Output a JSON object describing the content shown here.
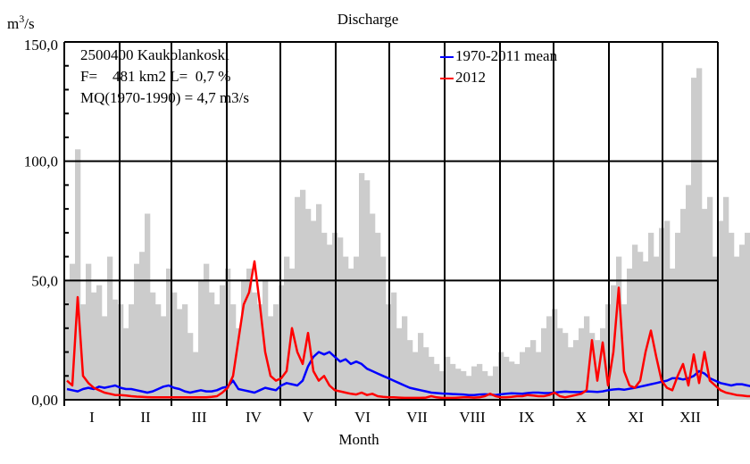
{
  "chart_data": {
    "type": "line",
    "title": "Discharge",
    "ylabel_base": "m",
    "ylabel_sup": "3",
    "ylabel_rest": "/s",
    "xlabel": "Month",
    "ylim": [
      0,
      150
    ],
    "xlim_days": [
      1,
      366
    ],
    "y_ticks": [
      {
        "value": 0,
        "label": "0,00"
      },
      {
        "value": 50,
        "label": "50,0"
      },
      {
        "value": 100,
        "label": "100,0"
      },
      {
        "value": 150,
        "label": "150,0"
      }
    ],
    "y_minor_step": 10,
    "months": [
      "I",
      "II",
      "III",
      "IV",
      "V",
      "VI",
      "VII",
      "VIII",
      "IX",
      "X",
      "XI",
      "XII"
    ],
    "month_start_days": [
      1,
      32,
      61,
      92,
      122,
      153,
      183,
      214,
      245,
      275,
      306,
      336,
      367
    ],
    "info": {
      "station": "2500400 Kaukolankoski",
      "area": "F=    481 km2 L=  0,7 %",
      "mq": "MQ(1970-1990) = 4,7 m3/s"
    },
    "legend": {
      "placement": "top-right",
      "entries": [
        {
          "name": "1970-2011 mean",
          "color": "#0000ff"
        },
        {
          "name": "2012",
          "color": "#ff0000"
        }
      ]
    },
    "envelope_color": "#cccccc",
    "sample_step_days": 3,
    "series": [
      {
        "name": "1970-2011 mean",
        "color": "#0000ff",
        "values": [
          4.5,
          4,
          3.5,
          4.5,
          5,
          4.5,
          5.5,
          5,
          5.5,
          6,
          5,
          4.5,
          4.5,
          4,
          3.5,
          3,
          3.5,
          4.5,
          5.5,
          6,
          5,
          4.5,
          3.5,
          3,
          3.5,
          4,
          3.5,
          3.5,
          4,
          5,
          5.5,
          8,
          4.5,
          4,
          3.5,
          3,
          4,
          5,
          4.5,
          4,
          6,
          7,
          6.5,
          6,
          8,
          14,
          18,
          20,
          19,
          20,
          18,
          16,
          17,
          15,
          16,
          15,
          13,
          12,
          11,
          10,
          9,
          8,
          7,
          6,
          5,
          4.5,
          4,
          3.5,
          3,
          2.8,
          2.6,
          2.5,
          2.4,
          2.3,
          2.2,
          2,
          2,
          2.2,
          2.3,
          2.2,
          2,
          2.3,
          2.5,
          2.7,
          2.6,
          2.5,
          2.8,
          3,
          3,
          2.8,
          2.8,
          3,
          3.2,
          3.4,
          3.3,
          3.2,
          3.3,
          3.5,
          3.4,
          3.3,
          3.5,
          4,
          4.3,
          4.5,
          4.2,
          4.6,
          5,
          5.5,
          6,
          6.5,
          7,
          7.5,
          8,
          9,
          9,
          8.5,
          9,
          10,
          12,
          11,
          9,
          8,
          7,
          6.5,
          6,
          6.5,
          6.5,
          6,
          5.5,
          5.5,
          5.8,
          6
        ]
      },
      {
        "name": "2012",
        "color": "#ff0000",
        "values": [
          8,
          6,
          43,
          10,
          7,
          5,
          4,
          3,
          2.5,
          2,
          2,
          1.8,
          1.5,
          1.3,
          1.2,
          1.1,
          1,
          1,
          1,
          1,
          1,
          1,
          1,
          1,
          1,
          1,
          1,
          1.2,
          1.5,
          3,
          5,
          10,
          25,
          40,
          45,
          58,
          40,
          20,
          10,
          8,
          9,
          12,
          30,
          20,
          15,
          28,
          12,
          8,
          10,
          6,
          4,
          3.5,
          3,
          2.5,
          2.2,
          3,
          2,
          2.5,
          1.5,
          1.2,
          1,
          1,
          0.9,
          0.8,
          0.8,
          0.8,
          0.8,
          0.9,
          1.5,
          1,
          0.8,
          0.8,
          0.8,
          0.9,
          1,
          1,
          0.9,
          1,
          1.5,
          2.5,
          1.5,
          1,
          1,
          1.2,
          1.5,
          1.5,
          2,
          1.8,
          1.5,
          1.5,
          2,
          3,
          1.5,
          1,
          1.5,
          2,
          2.5,
          4,
          25,
          8,
          24,
          6,
          20,
          47,
          12,
          6,
          5,
          8,
          20,
          29,
          18,
          8,
          5,
          4,
          10,
          15,
          6,
          19,
          7,
          20,
          8,
          6,
          4,
          3,
          2.5,
          2,
          1.8,
          1.5,
          1.5,
          1.2,
          1,
          1,
          1,
          1.2,
          1.5
        ]
      }
    ],
    "envelope_max": [
      50,
      57,
      105,
      40,
      57,
      45,
      48,
      35,
      60,
      42,
      40,
      30,
      40,
      57,
      62,
      78,
      45,
      40,
      35,
      55,
      45,
      38,
      40,
      28,
      20,
      50,
      57,
      45,
      40,
      48,
      55,
      40,
      30,
      50,
      55,
      45,
      40,
      50,
      35,
      40,
      48,
      60,
      55,
      85,
      88,
      80,
      75,
      82,
      70,
      65,
      70,
      68,
      60,
      55,
      60,
      95,
      92,
      78,
      70,
      60,
      40,
      45,
      30,
      35,
      25,
      20,
      28,
      22,
      18,
      15,
      12,
      18,
      15,
      13,
      12,
      10,
      14,
      15,
      12,
      10,
      14,
      20,
      18,
      16,
      15,
      20,
      22,
      25,
      20,
      30,
      35,
      38,
      30,
      28,
      22,
      25,
      30,
      35,
      28,
      25,
      30,
      40,
      48,
      60,
      40,
      55,
      65,
      62,
      58,
      70,
      60,
      72,
      75,
      55,
      70,
      80,
      90,
      135,
      139,
      80,
      85,
      60,
      75,
      85,
      70,
      60,
      65,
      70,
      72,
      60,
      63,
      62
    ]
  },
  "envelope_note": ""
}
